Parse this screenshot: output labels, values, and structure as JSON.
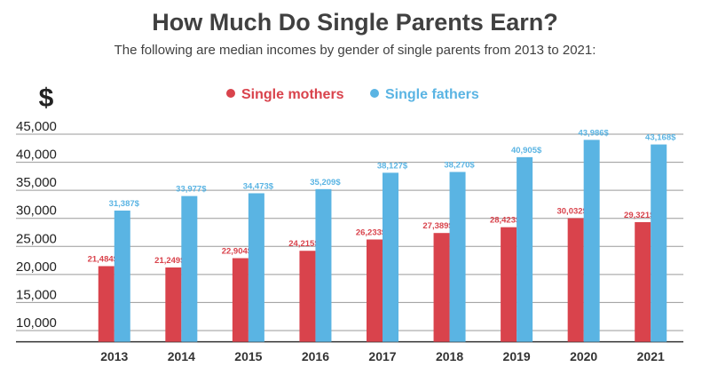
{
  "title": "How Much Do Single Parents Earn?",
  "subtitle": "The following are median incomes by gender of single parents from 2013 to 2021:",
  "chart_data": {
    "type": "bar",
    "ylabel": "$",
    "categories": [
      "2013",
      "2014",
      "2015",
      "2016",
      "2017",
      "2018",
      "2019",
      "2020",
      "2021"
    ],
    "series": [
      {
        "name": "Single mothers",
        "color": "#d9434c",
        "values": [
          21484,
          21249,
          22904,
          24215,
          26233,
          27389,
          28423,
          30032,
          29321
        ],
        "labels": [
          "21,484$",
          "21,249$",
          "22,904$",
          "24,215$",
          "26,233$",
          "27,389$",
          "28,423$",
          "30,032$",
          "29,321$"
        ]
      },
      {
        "name": "Single fathers",
        "color": "#5ab4e3",
        "values": [
          31387,
          33977,
          34473,
          35209,
          38127,
          38270,
          40905,
          43986,
          43168
        ],
        "labels": [
          "31,387$",
          "33,977$",
          "34,473$",
          "35,209$",
          "38,127$",
          "38,270$",
          "40,905$",
          "43,986$",
          "43,168$"
        ]
      }
    ],
    "y_ticks": [
      "10,000",
      "15,000",
      "20,000",
      "25,000",
      "30,000",
      "35,000",
      "40,000",
      "45,000"
    ],
    "ylim": [
      8000,
      47000
    ],
    "grid": true,
    "legend": "top-center"
  }
}
